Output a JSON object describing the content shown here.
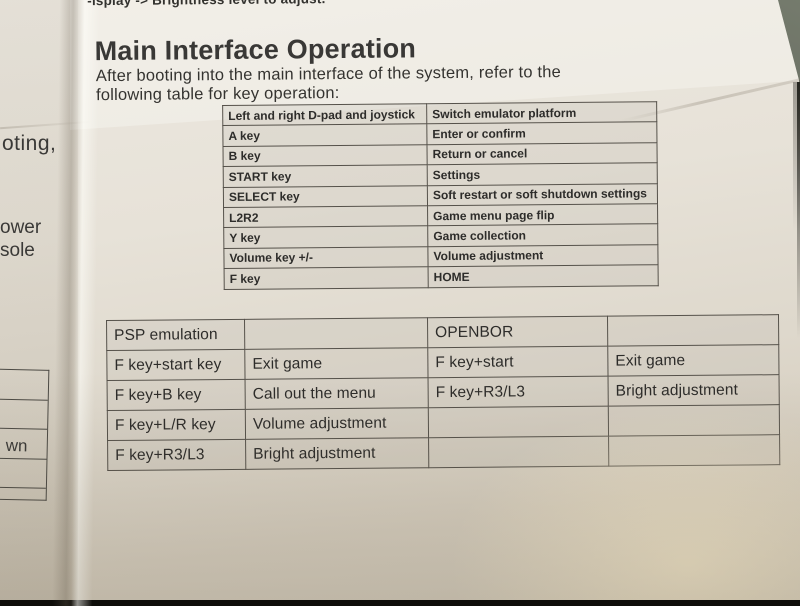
{
  "page": {
    "top_partial_line": "-isplay -> Brightness level to adjust.",
    "heading": "Main Interface Operation",
    "intro_line1": "After booting into the main interface of the system, refer to the",
    "intro_line2": "following table for key operation:"
  },
  "key_operation_table": {
    "rows": [
      [
        "Left and right D-pad and joystick",
        "Switch emulator platform"
      ],
      [
        "A key",
        "Enter or confirm"
      ],
      [
        "B key",
        "Return or cancel"
      ],
      [
        "START key",
        "Settings"
      ],
      [
        "SELECT key",
        "Soft restart or soft shutdown settings"
      ],
      [
        "L2R2",
        "Game menu page flip"
      ],
      [
        "Y key",
        "Game collection"
      ],
      [
        "Volume key +/-",
        "Volume adjustment"
      ],
      [
        "F key",
        "HOME"
      ]
    ]
  },
  "emulator_table": {
    "rows": [
      [
        "PSP emulation",
        "",
        "OPENBOR",
        ""
      ],
      [
        "F key+start key",
        "Exit game",
        "F key+start",
        "Exit game"
      ],
      [
        "F key+B key",
        "Call out the menu",
        "F key+R3/L3",
        "Bright adjustment"
      ],
      [
        "F key+L/R key",
        "Volume adjustment",
        "",
        ""
      ],
      [
        "F key+R3/L3",
        "Bright adjustment",
        "",
        ""
      ]
    ]
  },
  "left_page_fragments": {
    "booting": "oting,",
    "power": "ower",
    "console": "sole",
    "shutdown": "wn"
  },
  "colors": {
    "paper_light": "#ece8e0",
    "paper_dark": "#d0c8b8",
    "table_line": "#55514a",
    "ink": "#2e2d2b",
    "backdrop_dark": "#0c0c08"
  }
}
